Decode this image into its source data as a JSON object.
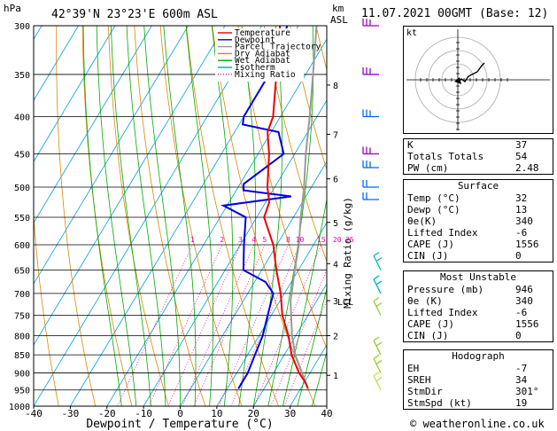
{
  "header": {
    "hpa_label": "hPa",
    "location": "42°39'N  23°23'E  600m  ASL",
    "km_label": "km",
    "asl_label": "ASL",
    "datetime": "11.07.2021  00GMT  (Base: 12)"
  },
  "footer": {
    "copyright": "© weatheronline.co.uk"
  },
  "chart_data": {
    "type": "skewt",
    "xlabel": "Dewpoint / Temperature (°C)",
    "ylabel_right": "Mixing Ratio (g/kg)",
    "xlim": [
      -40,
      40
    ],
    "ylim_hpa": [
      300,
      1000
    ],
    "x_ticks": [
      -40,
      -30,
      -20,
      -10,
      0,
      10,
      20,
      30,
      40
    ],
    "pressure_ticks": [
      300,
      350,
      400,
      450,
      500,
      550,
      600,
      650,
      700,
      750,
      800,
      850,
      900,
      950,
      1000
    ],
    "km_ticks": [
      {
        "label": "8",
        "p": 362
      },
      {
        "label": "7",
        "p": 423
      },
      {
        "label": "6",
        "p": 487
      },
      {
        "label": "5",
        "p": 559
      },
      {
        "label": "4",
        "p": 637
      },
      {
        "label": "3",
        "p": 716
      },
      {
        "label": "2",
        "p": 800
      },
      {
        "label": "1",
        "p": 907
      }
    ],
    "lcl": {
      "label": "LCL",
      "p": 718
    },
    "mixing_ratio_labels": [
      "1",
      "2",
      "3",
      "4",
      "5",
      "8",
      "10",
      "15",
      "20",
      "25"
    ],
    "legend": [
      {
        "name": "Temperature",
        "color": "#ee0000",
        "style": "solid"
      },
      {
        "name": "Dewpoint",
        "color": "#0000dd",
        "style": "solid"
      },
      {
        "name": "Parcel Trajectory",
        "color": "#999999",
        "style": "solid"
      },
      {
        "name": "Dry Adiabat",
        "color": "#dd8800",
        "style": "solid"
      },
      {
        "name": "Wet Adiabat",
        "color": "#00aa00",
        "style": "solid"
      },
      {
        "name": "Isotherm",
        "color": "#00a0e0",
        "style": "solid"
      },
      {
        "name": "Mixing Ratio",
        "color": "#ee00aa",
        "style": "dotted"
      }
    ],
    "temperature": [
      [
        946,
        32
      ],
      [
        925,
        30
      ],
      [
        900,
        27
      ],
      [
        850,
        22
      ],
      [
        800,
        18
      ],
      [
        750,
        13
      ],
      [
        700,
        9
      ],
      [
        650,
        4
      ],
      [
        600,
        -1
      ],
      [
        550,
        -8
      ],
      [
        525,
        -9
      ],
      [
        500,
        -12
      ],
      [
        450,
        -17
      ],
      [
        420,
        -21
      ],
      [
        400,
        -22
      ],
      [
        350,
        -28
      ],
      [
        300,
        -35
      ]
    ],
    "dewpoint": [
      [
        946,
        13
      ],
      [
        900,
        13
      ],
      [
        850,
        12
      ],
      [
        800,
        11
      ],
      [
        750,
        9
      ],
      [
        700,
        7
      ],
      [
        675,
        3
      ],
      [
        650,
        -5
      ],
      [
        600,
        -9
      ],
      [
        550,
        -13
      ],
      [
        530,
        -21
      ],
      [
        515,
        -4
      ],
      [
        505,
        -18
      ],
      [
        495,
        -19
      ],
      [
        450,
        -13
      ],
      [
        420,
        -18
      ],
      [
        410,
        -29
      ],
      [
        400,
        -30
      ],
      [
        350,
        -30
      ],
      [
        300,
        -33
      ]
    ],
    "parcel": [
      [
        946,
        32
      ],
      [
        850,
        23
      ],
      [
        800,
        19
      ],
      [
        718,
        13
      ],
      [
        650,
        9
      ],
      [
        600,
        6
      ],
      [
        550,
        2
      ],
      [
        500,
        -2
      ],
      [
        450,
        -7
      ],
      [
        400,
        -12
      ],
      [
        350,
        -18
      ],
      [
        300,
        -25
      ]
    ],
    "wind_barb_levels": [
      300,
      350,
      400,
      450,
      470,
      500,
      520,
      650,
      700,
      750,
      850,
      900,
      950
    ]
  },
  "hodograph": {
    "unit_label": "kt"
  },
  "indices": [
    {
      "label": "K",
      "value": "37"
    },
    {
      "label": "Totals Totals",
      "value": "54"
    },
    {
      "label": "PW (cm)",
      "value": "2.48"
    }
  ],
  "surface": {
    "title": "Surface",
    "rows": [
      {
        "label": "Temp (°C)",
        "value": "32"
      },
      {
        "label": "Dewp (°C)",
        "value": "13"
      },
      {
        "label": "θe(K)",
        "value": "340"
      },
      {
        "label": "Lifted Index",
        "value": "-6"
      },
      {
        "label": "CAPE (J)",
        "value": "1556"
      },
      {
        "label": "CIN (J)",
        "value": "0"
      }
    ]
  },
  "most_unstable": {
    "title": "Most Unstable",
    "rows": [
      {
        "label": "Pressure (mb)",
        "value": "946"
      },
      {
        "label": "θe (K)",
        "value": "340"
      },
      {
        "label": "Lifted Index",
        "value": "-6"
      },
      {
        "label": "CAPE (J)",
        "value": "1556"
      },
      {
        "label": "CIN (J)",
        "value": "0"
      }
    ]
  },
  "hodograph_stats": {
    "title": "Hodograph",
    "rows": [
      {
        "label": "EH",
        "value": "-7"
      },
      {
        "label": "SREH",
        "value": "34"
      },
      {
        "label": "StmDir",
        "value": "301°"
      },
      {
        "label": "StmSpd (kt)",
        "value": "19"
      }
    ]
  }
}
